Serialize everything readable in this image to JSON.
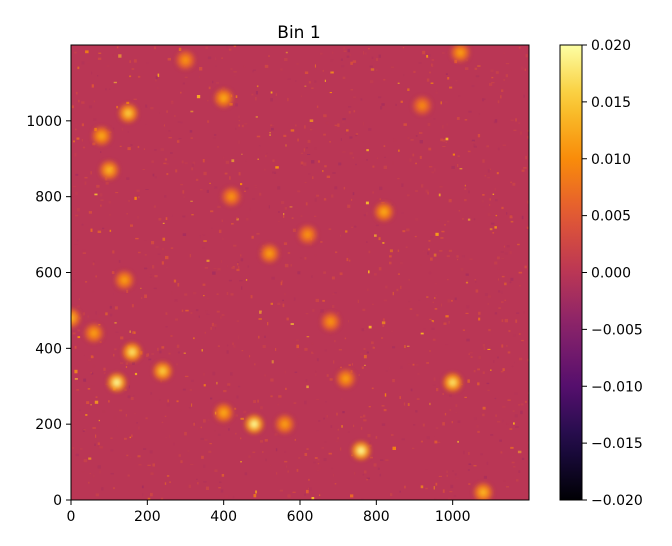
{
  "chart_data": {
    "type": "heatmap",
    "title": "Bin 1",
    "xlabel": "",
    "ylabel": "",
    "xlim": [
      0,
      1200
    ],
    "ylim": [
      0,
      1200
    ],
    "x_ticks": [
      0,
      200,
      400,
      600,
      800,
      1000
    ],
    "x_tick_labels": [
      "0",
      "200",
      "400",
      "600",
      "800",
      "1000"
    ],
    "y_ticks": [
      0,
      200,
      400,
      600,
      800,
      1000
    ],
    "y_tick_labels": [
      "0",
      "200",
      "400",
      "600",
      "800",
      "1000"
    ],
    "colormap": "inferno",
    "vmin": -0.02,
    "vmax": 0.02,
    "colorbar_ticks": [
      0.02,
      0.015,
      0.01,
      0.005,
      0.0,
      -0.005,
      -0.01,
      -0.015,
      -0.02
    ],
    "colorbar_tick_labels": [
      "0.020",
      "0.015",
      "0.010",
      "0.005",
      "0.000",
      "−0.005",
      "−0.010",
      "−0.015",
      "−0.020"
    ],
    "colorbar_position": "right",
    "background_value": 0.0,
    "hotspots": [
      {
        "x": 120,
        "y": 310,
        "value": 0.02
      },
      {
        "x": 160,
        "y": 390,
        "value": 0.018
      },
      {
        "x": 240,
        "y": 340,
        "value": 0.016
      },
      {
        "x": 480,
        "y": 200,
        "value": 0.02
      },
      {
        "x": 760,
        "y": 130,
        "value": 0.02
      },
      {
        "x": 1000,
        "y": 310,
        "value": 0.018
      },
      {
        "x": 150,
        "y": 1020,
        "value": 0.016
      },
      {
        "x": 100,
        "y": 870,
        "value": 0.014
      },
      {
        "x": 80,
        "y": 960,
        "value": 0.013
      },
      {
        "x": 400,
        "y": 1060,
        "value": 0.013
      },
      {
        "x": 420,
        "y": 800,
        "value": 0.011
      },
      {
        "x": 820,
        "y": 760,
        "value": 0.013
      },
      {
        "x": 620,
        "y": 700,
        "value": 0.011
      },
      {
        "x": 680,
        "y": 470,
        "value": 0.011
      },
      {
        "x": 560,
        "y": 200,
        "value": 0.012
      },
      {
        "x": 400,
        "y": 230,
        "value": 0.013
      },
      {
        "x": 140,
        "y": 580,
        "value": 0.012
      },
      {
        "x": 0,
        "y": 480,
        "value": 0.014
      },
      {
        "x": 60,
        "y": 440,
        "value": 0.012
      },
      {
        "x": 1080,
        "y": 20,
        "value": 0.014
      },
      {
        "x": 920,
        "y": 1040,
        "value": 0.01
      },
      {
        "x": 300,
        "y": 1160,
        "value": 0.011
      },
      {
        "x": 1020,
        "y": 1180,
        "value": 0.012
      },
      {
        "x": 520,
        "y": 650,
        "value": 0.012
      },
      {
        "x": 720,
        "y": 320,
        "value": 0.012
      }
    ]
  }
}
